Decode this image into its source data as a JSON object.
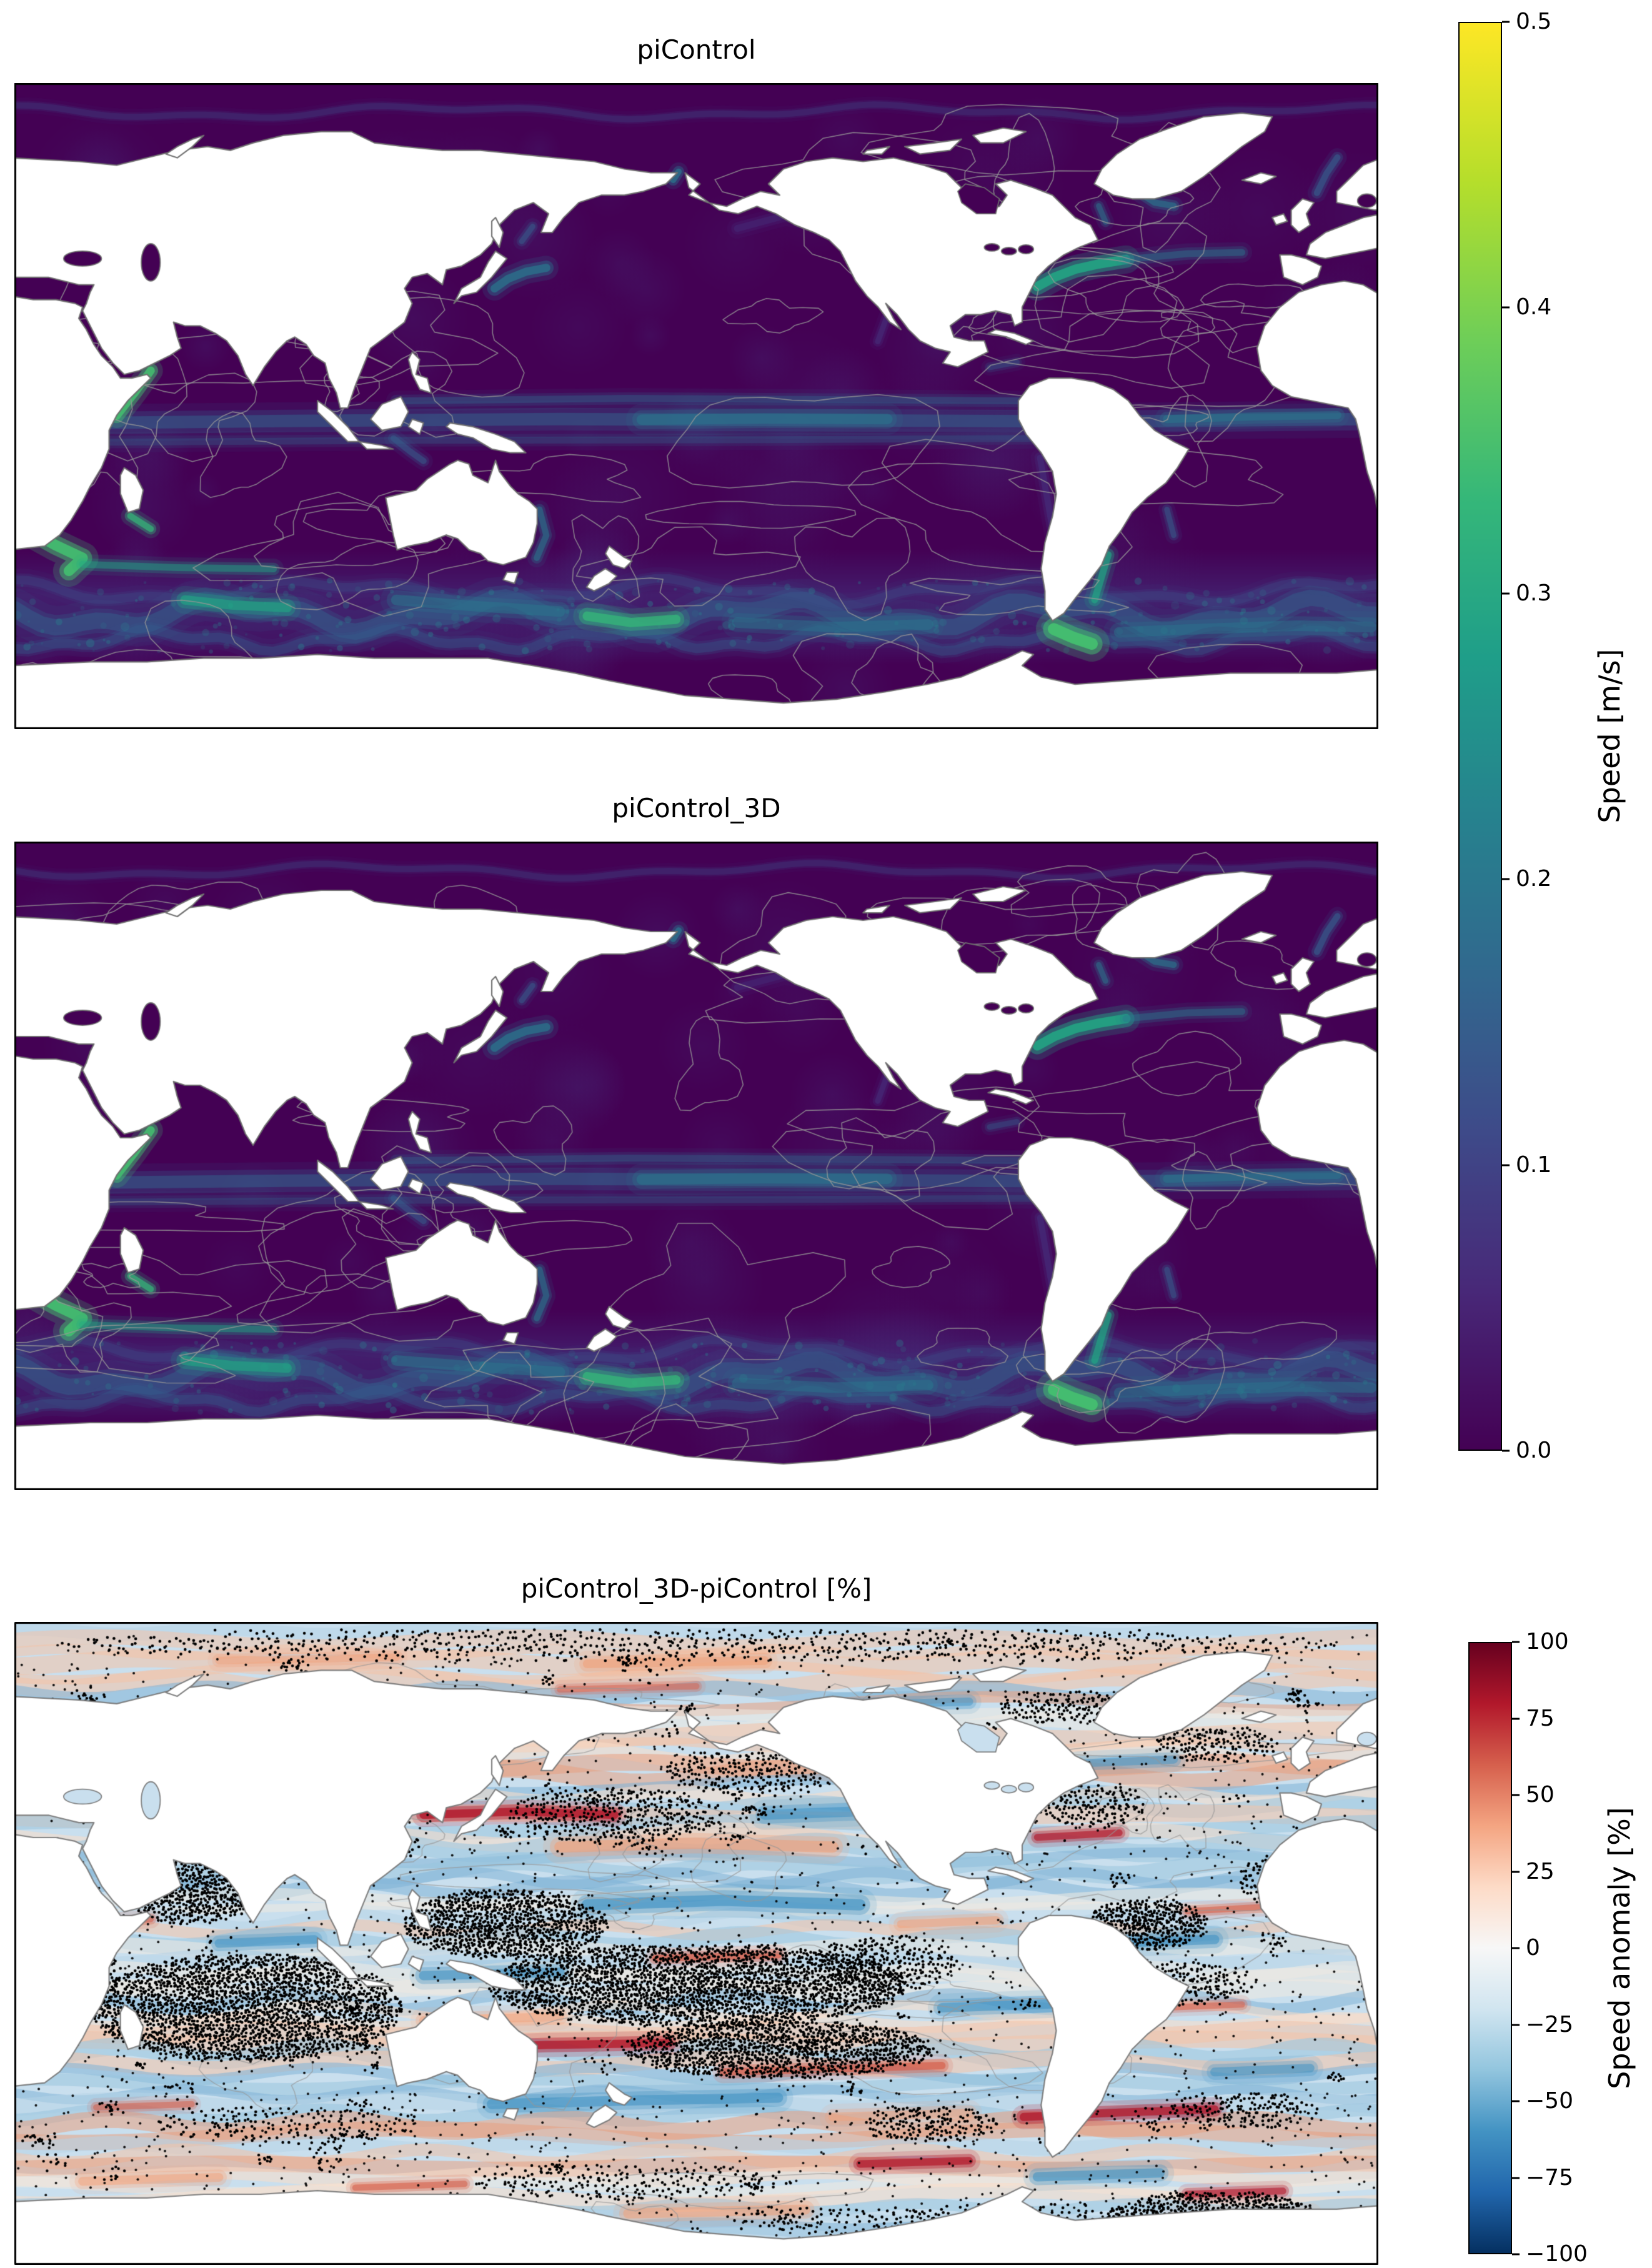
{
  "panels": [
    {
      "id": "picontrol",
      "title": "piControl"
    },
    {
      "id": "picontrol_3d",
      "title": "piControl_3D"
    },
    {
      "id": "anomaly",
      "title": "piControl_3D-piControl [%]"
    }
  ],
  "colorbars": [
    {
      "id": "speed",
      "label": "Speed [m/s]",
      "ticks": [
        "0.5",
        "0.4",
        "0.3",
        "0.2",
        "0.1",
        "0.0"
      ],
      "min": 0.0,
      "max": 0.5,
      "colormap": "viridis",
      "stops": [
        "#fde725",
        "#b5de2b",
        "#6ece58",
        "#35b779",
        "#1f9e89",
        "#26828e",
        "#31688e",
        "#3e4a89",
        "#482878",
        "#440154"
      ]
    },
    {
      "id": "anom",
      "label": "Speed anomaly [%]",
      "ticks": [
        "100",
        "75",
        "50",
        "25",
        "0",
        "−25",
        "−50",
        "−75",
        "−100"
      ],
      "min": -100,
      "max": 100,
      "colormap": "RdBu_r",
      "stops": [
        "#67001f",
        "#b2182b",
        "#d6604d",
        "#f4a582",
        "#fddbc7",
        "#f7f7f7",
        "#d1e5f0",
        "#92c5de",
        "#4393c3",
        "#2166ac",
        "#053061"
      ]
    }
  ],
  "chart_data": [
    {
      "type": "heatmap",
      "title": "piControl",
      "variable": "ocean surface current speed",
      "units": "m/s",
      "colormap": "viridis",
      "vmin": 0.0,
      "vmax": 0.5,
      "colorbar_ticks": [
        0.0,
        0.1,
        0.2,
        0.3,
        0.4,
        0.5
      ],
      "map": "global ocean map, Pacific-centered, land masked white with gray coastlines and gray bathymetry contour lines",
      "notable_features": [
        "open-ocean background speeds near 0 m/s (dark purple)",
        "equatorial current band ~0.1-0.2 m/s across Pacific, Atlantic and Indian oceans",
        "western boundary currents (Gulf Stream, Kuroshio, Agulhas, Somali) reach ~0.3-0.5 m/s (green)",
        "Antarctic Circumpolar Current jets ~0.1-0.4 m/s with bright spots at Agulhas retroflection, Kerguelen, south of New Zealand and Drake Passage"
      ]
    },
    {
      "type": "heatmap",
      "title": "piControl_3D",
      "variable": "ocean surface current speed",
      "units": "m/s",
      "colormap": "viridis",
      "vmin": 0.0,
      "vmax": 0.5,
      "colorbar_ticks": [
        0.0,
        0.1,
        0.2,
        0.3,
        0.4,
        0.5
      ],
      "map": "global ocean map, Pacific-centered, land masked white with gray coastlines and gray bathymetry contour lines",
      "notable_features": [
        "pattern nearly identical to piControl panel",
        "same equatorial, western boundary and circumpolar current structures"
      ]
    },
    {
      "type": "heatmap",
      "title": "piControl_3D-piControl [%]",
      "variable": "relative speed anomaly",
      "units": "%",
      "colormap": "RdBu_r",
      "vmin": -100,
      "vmax": 100,
      "colorbar_ticks": [
        -100,
        -75,
        -50,
        -25,
        0,
        25,
        50,
        75,
        100
      ],
      "map": "global ocean map, Pacific-centered, land masked white with gray coastlines",
      "notable_features": [
        "alternating zonal bands of positive (red) and negative (blue) anomalies",
        "dense black stippling covering large regions (central Indian Ocean, equatorial and South Pacific, parts of Atlantic and Arctic)",
        "strong red streaks along subtropical and circumpolar frontal zones"
      ]
    }
  ]
}
